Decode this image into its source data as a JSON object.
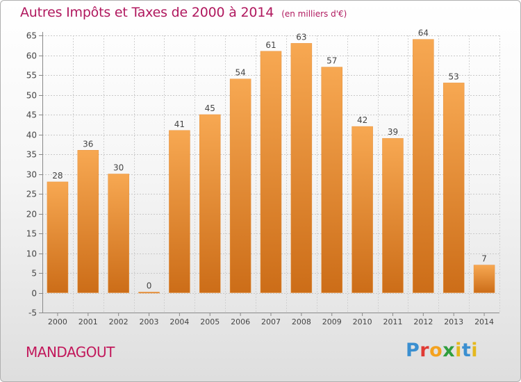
{
  "header": {
    "title": "Autres Impôts et Taxes de 2000 à 2014",
    "subtitle": "(en milliers d'€)"
  },
  "footer": {
    "place": "MANDAGOUT",
    "logo_text": "Proxiti"
  },
  "colors": {
    "bar_light": "#f7a852",
    "bar_dark": "#cc6d18",
    "title": "#b0185e"
  },
  "chart_data": {
    "type": "bar",
    "title": "Autres Impôts et Taxes de 2000 à 2014",
    "subtitle": "(en milliers d'€)",
    "xlabel": "",
    "ylabel": "",
    "categories": [
      "2000",
      "2001",
      "2002",
      "2003",
      "2004",
      "2005",
      "2006",
      "2007",
      "2008",
      "2009",
      "2010",
      "2011",
      "2012",
      "2013",
      "2014"
    ],
    "values": [
      28,
      36,
      30,
      0,
      41,
      45,
      54,
      61,
      63,
      57,
      42,
      39,
      64,
      53,
      7
    ],
    "data_labels": [
      "28",
      "36",
      "30",
      "0",
      "41",
      "45",
      "54",
      "61",
      "63",
      "57",
      "42",
      "39",
      "64",
      "53",
      "7"
    ],
    "yticks": [
      -5,
      0,
      5,
      10,
      15,
      20,
      25,
      30,
      35,
      40,
      45,
      50,
      55,
      60,
      65
    ],
    "ylim": [
      -5,
      65
    ],
    "grid": true,
    "legend": "none"
  }
}
